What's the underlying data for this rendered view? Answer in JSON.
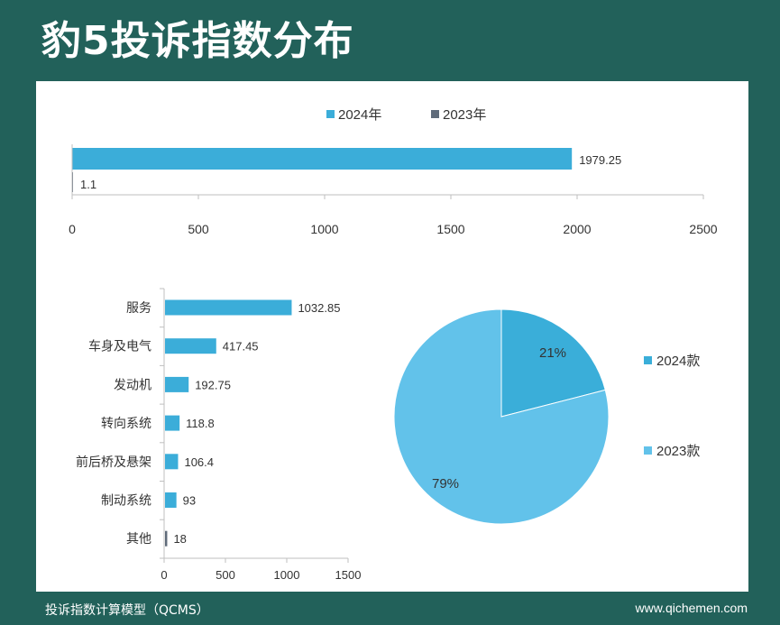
{
  "header": {
    "title": "豹5投诉指数分布"
  },
  "footer": {
    "left": "投诉指数计算模型（QCMS）",
    "right": "www.qichemen.com"
  },
  "colors": {
    "background": "#22615a",
    "series_2024": "#3badd9",
    "series_2023": "#5f6b7a",
    "pie_2024": "#3aaed9",
    "pie_2023": "#62c2ea"
  },
  "chart_data": [
    {
      "type": "bar",
      "orientation": "horizontal",
      "series": [
        {
          "name": "2024年",
          "values": [
            1979.25
          ],
          "labels": [
            "1979.25"
          ]
        },
        {
          "name": "2023年",
          "values": [
            1.1
          ],
          "labels": [
            "1.1"
          ]
        }
      ],
      "xlim": [
        0,
        2500
      ],
      "xticks": [
        "0",
        "500",
        "1000",
        "1500",
        "2000",
        "2500"
      ],
      "legend": "top"
    },
    {
      "type": "bar",
      "orientation": "horizontal",
      "categories": [
        "服务",
        "车身及电气",
        "发动机",
        "转向系统",
        "前后桥及悬架",
        "制动系统",
        "其他"
      ],
      "values": [
        1032.85,
        417.45,
        192.75,
        118.8,
        106.4,
        93,
        18
      ],
      "value_labels": [
        "1032.85",
        "417.45",
        "192.75",
        "118.8",
        "106.4",
        "93",
        "18"
      ],
      "xlim": [
        0,
        1500
      ],
      "xticks": [
        "0",
        "500",
        "1000",
        "1500"
      ]
    },
    {
      "type": "pie",
      "categories": [
        "2024款",
        "2023款"
      ],
      "values": [
        21,
        79
      ],
      "labels": [
        "21%",
        "79%"
      ],
      "legend": "right"
    }
  ]
}
